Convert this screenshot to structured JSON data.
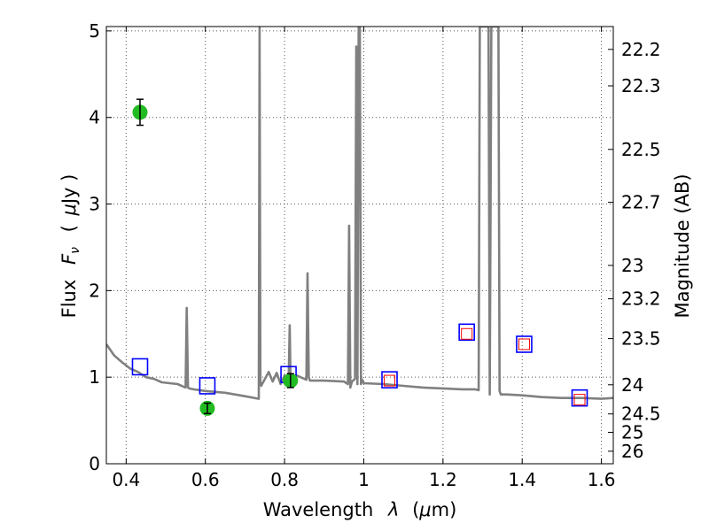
{
  "chart_data": {
    "type": "scatter",
    "title": "",
    "xlabel_prefix": "Wavelength",
    "xlabel_symbol": "λ",
    "xlabel_unit_open": "(",
    "xlabel_unit_mu": "μ",
    "xlabel_unit_close": "m)",
    "ylabel_prefix": "Flux",
    "ylabel_symbol": "F",
    "ylabel_subscript": "ν",
    "ylabel_unit_open": "(",
    "ylabel_unit_mu": "μ",
    "ylabel_unit_close": "Jy )",
    "y2label": "Magnitude (AB)",
    "xlim": [
      0.35,
      1.63
    ],
    "ylim": [
      0,
      5.05
    ],
    "grid": true,
    "xticks": [
      0.4,
      0.6,
      0.8,
      1,
      1.2,
      1.4,
      1.6
    ],
    "xtick_labels": [
      "0.4",
      "0.6",
      "0.8",
      "1",
      "1.2",
      "1.4",
      "1.6"
    ],
    "yticks": [
      0,
      1,
      2,
      3,
      4,
      5
    ],
    "ytick_labels": [
      "0",
      "1",
      "2",
      "3",
      "4",
      "5"
    ],
    "y2ticks": [
      22.2,
      22.3,
      22.5,
      22.7,
      23,
      23.2,
      23.5,
      24,
      24.5,
      25,
      26
    ],
    "y2tick_labels": [
      "22.2",
      "22.3",
      "22.5",
      "22.7",
      "23",
      "23.2",
      "23.5",
      "24",
      "24.5",
      "25",
      "26"
    ],
    "series": [
      {
        "kind": "model-spectrum",
        "color": "#808080",
        "x": [
          0.35,
          0.37,
          0.39,
          0.41,
          0.43,
          0.45,
          0.47,
          0.49,
          0.51,
          0.53,
          0.55,
          0.553,
          0.556,
          0.559,
          0.57,
          0.6,
          0.65,
          0.7,
          0.735,
          0.737,
          0.739,
          0.741,
          0.76,
          0.77,
          0.78,
          0.79,
          0.8,
          0.81,
          0.813,
          0.815,
          0.818,
          0.83,
          0.855,
          0.858,
          0.861,
          0.864,
          0.9,
          0.95,
          0.96,
          0.963,
          0.966,
          0.97,
          0.978,
          0.981,
          0.984,
          0.987,
          0.99,
          0.993,
          0.996,
          1.0,
          1.05,
          1.1,
          1.15,
          1.2,
          1.25,
          1.28,
          1.29,
          1.293,
          1.296,
          1.31,
          1.315,
          1.318,
          1.322,
          1.33,
          1.34,
          1.343,
          1.346,
          1.36,
          1.4,
          1.45,
          1.5,
          1.55,
          1.6,
          1.63
        ],
        "y": [
          1.38,
          1.25,
          1.17,
          1.1,
          1.06,
          1.0,
          0.98,
          0.94,
          0.93,
          0.92,
          0.88,
          1.8,
          0.88,
          0.87,
          0.86,
          0.84,
          0.82,
          0.78,
          0.75,
          5.05,
          0.95,
          0.9,
          1.06,
          0.95,
          1.05,
          0.92,
          1.02,
          0.92,
          1.6,
          0.95,
          0.98,
          1.02,
          0.97,
          2.2,
          1.0,
          0.96,
          0.96,
          0.95,
          0.92,
          2.75,
          0.88,
          0.95,
          0.98,
          4.82,
          0.92,
          5.05,
          5.05,
          0.92,
          0.97,
          0.93,
          0.92,
          0.9,
          0.88,
          0.87,
          0.86,
          0.86,
          0.85,
          5.05,
          5.05,
          5.05,
          5.05,
          0.8,
          5.05,
          5.05,
          5.05,
          0.84,
          0.8,
          0.8,
          0.79,
          0.77,
          0.76,
          0.76,
          0.75,
          0.76
        ]
      },
      {
        "kind": "synthetic-photometry",
        "marker": "square",
        "color": "#0000ff",
        "x": [
          0.435,
          0.605,
          0.81,
          1.065,
          1.26,
          1.405,
          1.545
        ],
        "y": [
          1.12,
          0.9,
          1.03,
          0.97,
          1.52,
          1.38,
          0.76
        ]
      },
      {
        "kind": "observed-photometry",
        "marker": "square-small",
        "color": "#ff0000",
        "x": [
          1.065,
          1.26,
          1.405,
          1.545
        ],
        "y": [
          0.96,
          1.5,
          1.38,
          0.74
        ]
      },
      {
        "kind": "measurements",
        "marker": "circle",
        "color": "#22bb22",
        "x": [
          0.435,
          0.605,
          0.815
        ],
        "y": [
          4.06,
          0.64,
          0.96
        ],
        "err": [
          0.15,
          0.06,
          0.08
        ]
      }
    ]
  }
}
